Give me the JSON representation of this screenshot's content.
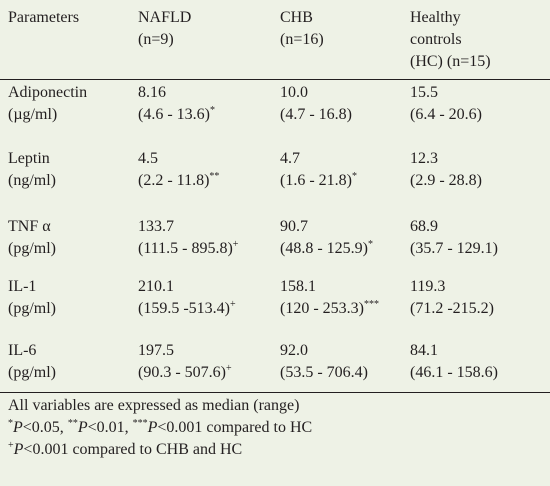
{
  "header": {
    "parameters": "Parameters",
    "nafld": [
      "NAFLD",
      "(n=9)"
    ],
    "chb": [
      "CHB",
      "(n=16)"
    ],
    "hc": [
      "Healthy",
      "controls",
      "(HC) (n=15)"
    ]
  },
  "rows": [
    {
      "param": [
        "Adiponectin",
        "(µg/ml)"
      ],
      "nafld": {
        "median": "8.16",
        "range": "(4.6 - 13.6)",
        "mark": "*"
      },
      "chb": {
        "median": "10.0",
        "range": "(4.7 - 16.8)",
        "mark": ""
      },
      "hc": {
        "median": "15.5",
        "range": "(6.4 - 20.6)",
        "mark": ""
      }
    },
    {
      "param": [
        "Leptin",
        "(ng/ml)"
      ],
      "nafld": {
        "median": "4.5",
        "range": "(2.2 - 11.8)",
        "mark": "**"
      },
      "chb": {
        "median": "4.7",
        "range": "(1.6 - 21.8)",
        "mark": "*"
      },
      "hc": {
        "median": "12.3",
        "range": "(2.9 - 28.8)",
        "mark": ""
      }
    },
    {
      "param": [
        "TNF α",
        "(pg/ml)"
      ],
      "nafld": {
        "median": "133.7",
        "range": "(111.5 - 895.8)",
        "mark": "+"
      },
      "chb": {
        "median": "90.7",
        "range": "(48.8 - 125.9)",
        "mark": "*"
      },
      "hc": {
        "median": "68.9",
        "range": "(35.7 - 129.1)",
        "mark": ""
      }
    },
    {
      "param": [
        "IL-1",
        "(pg/ml)"
      ],
      "nafld": {
        "median": "210.1",
        "range": "(159.5 -513.4)",
        "mark": "+"
      },
      "chb": {
        "median": "158.1",
        "range": "(120 - 253.3)",
        "mark": "***"
      },
      "hc": {
        "median": "119.3",
        "range": "(71.2 -215.2)",
        "mark": ""
      }
    },
    {
      "param": [
        "IL-6",
        "(pg/ml)"
      ],
      "nafld": {
        "median": "197.5",
        "range": "(90.3 - 507.6)",
        "mark": "+"
      },
      "chb": {
        "median": "92.0",
        "range": "(53.5 - 706.4)",
        "mark": ""
      },
      "hc": {
        "median": "84.1",
        "range": "(46.1 - 158.6)",
        "mark": ""
      }
    }
  ],
  "footnotes": {
    "line1": "All variables are expressed as median (range)",
    "line2": {
      "m1": "*",
      "p1": "P",
      "t1": "<0.05, ",
      "m2": "**",
      "p2": "P",
      "t2": "<0.01, ",
      "m3": "***",
      "p3": "P",
      "t3": "<0.001 compared to HC"
    },
    "line3": {
      "m": "+",
      "p": "P",
      "t": "<0.001 compared to CHB and HC"
    }
  }
}
